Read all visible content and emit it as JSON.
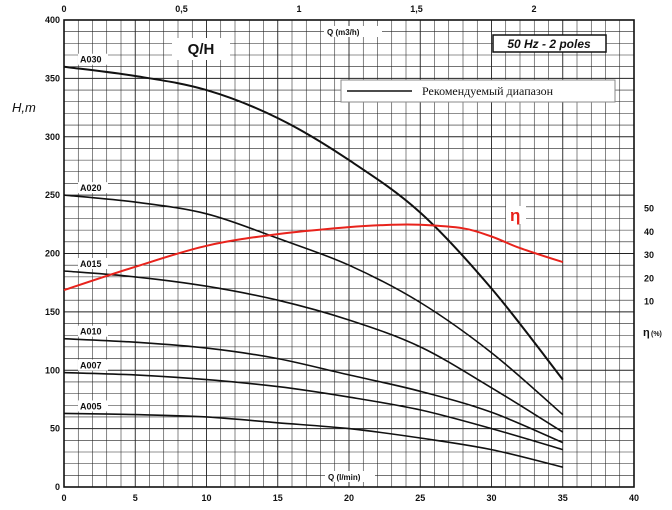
{
  "chart_data": {
    "type": "line",
    "title": "Q/H",
    "badge": "50 Hz - 2 poles",
    "ylabel": "H,m",
    "xlabel_top": "Q (m3/h)",
    "xlabel_bottom": "Q (l/min)",
    "eff_axis_label": "η",
    "eff_axis_unit": "(%)",
    "eff_curve_label": "η",
    "legend": "Рекомендуемый  диапазон",
    "xlim": [
      0,
      40
    ],
    "ylim": [
      0,
      400
    ],
    "xticks": [
      "0",
      "5",
      "10",
      "15",
      "20",
      "25",
      "30",
      "35",
      "40"
    ],
    "xticks_top": [
      "0",
      "0,5",
      "1",
      "1,5",
      "2"
    ],
    "yticks": [
      "0",
      "50",
      "100",
      "150",
      "200",
      "250",
      "300",
      "350",
      "400"
    ],
    "eff_ticks": [
      "10",
      "20",
      "30",
      "40",
      "50"
    ],
    "eff_ticks_values": [
      10,
      20,
      30,
      40,
      50
    ],
    "x": [
      0,
      5,
      10,
      15,
      20,
      25,
      30,
      35
    ],
    "series": [
      {
        "name": "A030",
        "values": [
          360,
          352,
          340,
          316,
          280,
          235,
          170,
          92
        ]
      },
      {
        "name": "A020",
        "values": [
          250,
          244,
          234,
          213,
          190,
          158,
          115,
          62
        ]
      },
      {
        "name": "A015",
        "values": [
          185,
          180,
          172,
          160,
          143,
          120,
          85,
          47
        ]
      },
      {
        "name": "A010",
        "values": [
          127,
          124,
          119,
          110,
          96,
          82,
          64,
          38
        ]
      },
      {
        "name": "A007",
        "values": [
          98,
          96,
          92,
          86,
          77,
          66,
          50,
          32
        ]
      },
      {
        "name": "A005",
        "values": [
          63,
          62,
          60,
          55,
          50,
          42,
          32,
          17
        ]
      }
    ],
    "efficiency": {
      "x": [
        0,
        5,
        10,
        15,
        20,
        23,
        25,
        28,
        30,
        32,
        35
      ],
      "values": [
        15,
        25,
        34,
        39,
        42,
        43,
        43,
        41.5,
        38,
        33,
        27
      ]
    }
  }
}
